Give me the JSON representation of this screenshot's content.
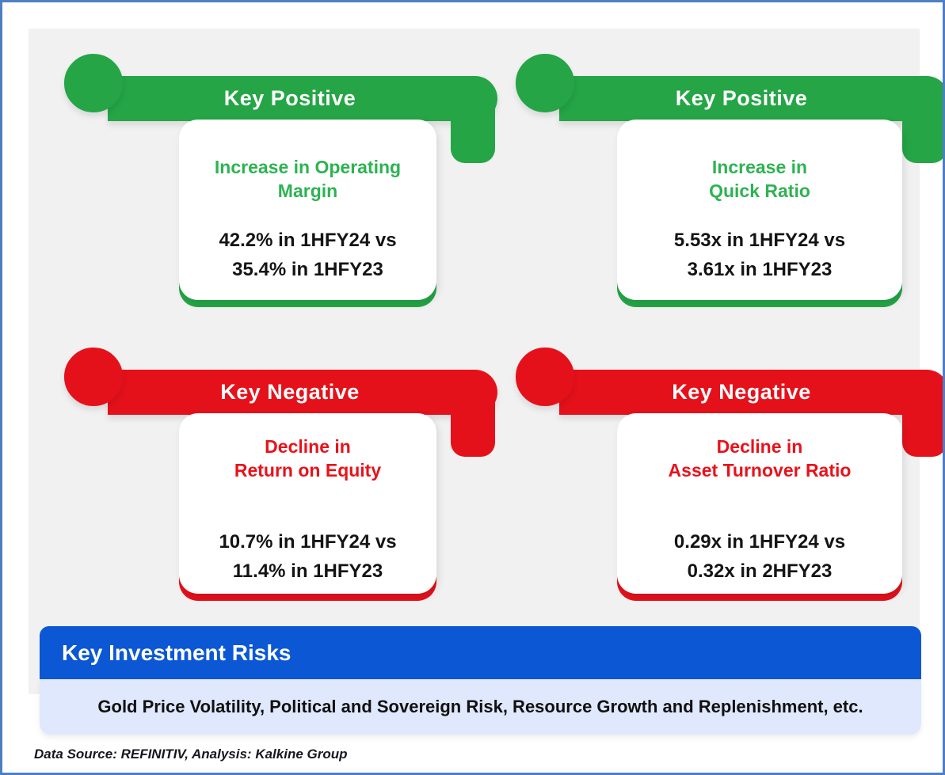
{
  "cards": [
    {
      "badge": "Key Positive",
      "heading": "Increase in Operating\nMargin",
      "stats": "42.2% in 1HFY24 vs\n35.4% in 1HFY23",
      "sentiment": "positive",
      "metric": "Operating Margin",
      "value_current": "42.2%",
      "period_current": "1HFY24",
      "value_prior": "35.4%",
      "period_prior": "1HFY23"
    },
    {
      "badge": "Key Positive",
      "heading": "Increase in\nQuick Ratio",
      "stats": "5.53x in 1HFY24 vs\n3.61x in 1HFY23",
      "sentiment": "positive",
      "metric": "Quick Ratio",
      "value_current": "5.53x",
      "period_current": "1HFY24",
      "value_prior": "3.61x",
      "period_prior": "1HFY23"
    },
    {
      "badge": "Key Negative",
      "heading": "Decline in\nReturn on Equity",
      "stats": "10.7% in 1HFY24 vs\n11.4% in 1HFY23",
      "sentiment": "negative",
      "metric": "Return on Equity",
      "value_current": "10.7%",
      "period_current": "1HFY24",
      "value_prior": "11.4%",
      "period_prior": "1HFY23"
    },
    {
      "badge": "Key Negative",
      "heading": "Decline in\nAsset Turnover Ratio",
      "stats": "0.29x in 1HFY24 vs\n0.32x in 2HFY23",
      "sentiment": "negative",
      "metric": "Asset Turnover Ratio",
      "value_current": "0.29x",
      "period_current": "1HFY24",
      "value_prior": "0.32x",
      "period_prior": "2HFY23"
    }
  ],
  "risks": {
    "title": "Key Investment Risks",
    "text": "Gold Price Volatility, Political and Sovereign Risk, Resource Growth and Replenishment, etc."
  },
  "footer": {
    "text": "Data Source: REFINITIV, Analysis: Kalkine Group"
  },
  "colors": {
    "positive": "#25A546",
    "positive_text": "#2DB352",
    "negative": "#E4111B",
    "negative_text": "#E8121B",
    "banner": "#0B57D4",
    "strip": "#DFE8FC",
    "panel_bg": "#F1F1F1",
    "frame_border": "#4D7FC3",
    "stat_text": "#141414"
  }
}
